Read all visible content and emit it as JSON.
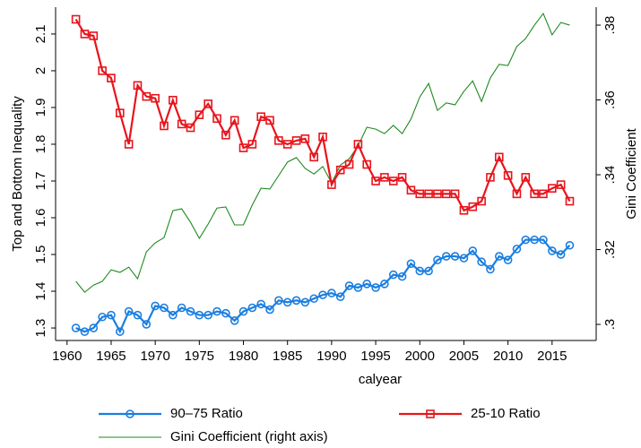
{
  "chart_data": {
    "type": "line",
    "x_label": "calyear",
    "y_label": "Top and Bottom Inequality",
    "y2_label": "Gini Coefficient",
    "x": [
      1961,
      1962,
      1963,
      1964,
      1965,
      1966,
      1967,
      1968,
      1969,
      1970,
      1971,
      1972,
      1973,
      1974,
      1975,
      1976,
      1977,
      1978,
      1979,
      1980,
      1981,
      1982,
      1983,
      1984,
      1985,
      1986,
      1987,
      1988,
      1989,
      1990,
      1991,
      1992,
      1993,
      1994,
      1995,
      1996,
      1997,
      1998,
      1999,
      2000,
      2001,
      2002,
      2003,
      2004,
      2005,
      2006,
      2007,
      2008,
      2009,
      2010,
      2011,
      2012,
      2013,
      2014,
      2015,
      2016,
      2017
    ],
    "xlim": [
      1958.7,
      2020
    ],
    "xticks": [
      1960,
      1965,
      1970,
      1975,
      1980,
      1985,
      1990,
      1995,
      2000,
      2005,
      2010,
      2015
    ],
    "ylim": [
      1.266,
      2.173
    ],
    "yticks": [
      1.3,
      1.4,
      1.5,
      1.6,
      1.7,
      1.8,
      1.9,
      2,
      2.1
    ],
    "y2lim": [
      0.2957,
      0.3848
    ],
    "y2ticks": [
      {
        "value": 0.3,
        "label": ".3"
      },
      {
        "value": 0.32,
        "label": ".32"
      },
      {
        "value": 0.34,
        "label": ".34"
      },
      {
        "value": 0.36,
        "label": ".36"
      },
      {
        "value": 0.38,
        "label": ".38"
      }
    ],
    "series": [
      {
        "name": "90–75 Ratio",
        "color": "#1a7ee0",
        "marker": "circle",
        "values": [
          1.3,
          1.29,
          1.3,
          1.33,
          1.335,
          1.29,
          1.345,
          1.335,
          1.31,
          1.36,
          1.355,
          1.335,
          1.355,
          1.345,
          1.335,
          1.335,
          1.345,
          1.34,
          1.32,
          1.345,
          1.355,
          1.365,
          1.35,
          1.375,
          1.37,
          1.375,
          1.37,
          1.38,
          1.39,
          1.395,
          1.385,
          1.415,
          1.41,
          1.42,
          1.41,
          1.42,
          1.445,
          1.44,
          1.475,
          1.455,
          1.455,
          1.485,
          1.495,
          1.495,
          1.49,
          1.51,
          1.48,
          1.46,
          1.495,
          1.485,
          1.515,
          1.54,
          1.54,
          1.54,
          1.51,
          1.5,
          1.525
        ]
      },
      {
        "name": "25-10 Ratio",
        "color": "#e8141c",
        "marker": "square",
        "values": [
          2.14,
          2.1,
          2.095,
          2.0,
          1.98,
          1.885,
          1.8,
          1.96,
          1.93,
          1.925,
          1.85,
          1.92,
          1.855,
          1.845,
          1.88,
          1.91,
          1.87,
          1.825,
          1.865,
          1.79,
          1.8,
          1.875,
          1.865,
          1.81,
          1.8,
          1.81,
          1.815,
          1.765,
          1.82,
          1.69,
          1.73,
          1.745,
          1.8,
          1.745,
          1.7,
          1.71,
          1.7,
          1.71,
          1.675,
          1.665,
          1.665,
          1.665,
          1.665,
          1.665,
          1.62,
          1.63,
          1.645,
          1.71,
          1.765,
          1.715,
          1.665,
          1.71,
          1.665,
          1.665,
          1.68,
          1.69,
          1.645
        ]
      },
      {
        "name": "Gini Coefficient (right axis)",
        "color": "#1f8a1f",
        "axis": "y2",
        "values": [
          0.3115,
          0.3086,
          0.3105,
          0.3115,
          0.3146,
          0.3139,
          0.3153,
          0.3122,
          0.3194,
          0.3218,
          0.3232,
          0.3304,
          0.3309,
          0.3273,
          0.323,
          0.3268,
          0.3311,
          0.3314,
          0.3266,
          0.3266,
          0.3319,
          0.3364,
          0.3362,
          0.3398,
          0.3434,
          0.3446,
          0.3417,
          0.3402,
          0.3422,
          0.3378,
          0.3426,
          0.3443,
          0.3477,
          0.3527,
          0.3522,
          0.351,
          0.3532,
          0.351,
          0.3549,
          0.3608,
          0.3644,
          0.3572,
          0.3592,
          0.3587,
          0.3623,
          0.3651,
          0.3596,
          0.3659,
          0.3695,
          0.3692,
          0.3743,
          0.3764,
          0.38,
          0.3831,
          0.3774,
          0.3807,
          0.38
        ]
      }
    ]
  }
}
